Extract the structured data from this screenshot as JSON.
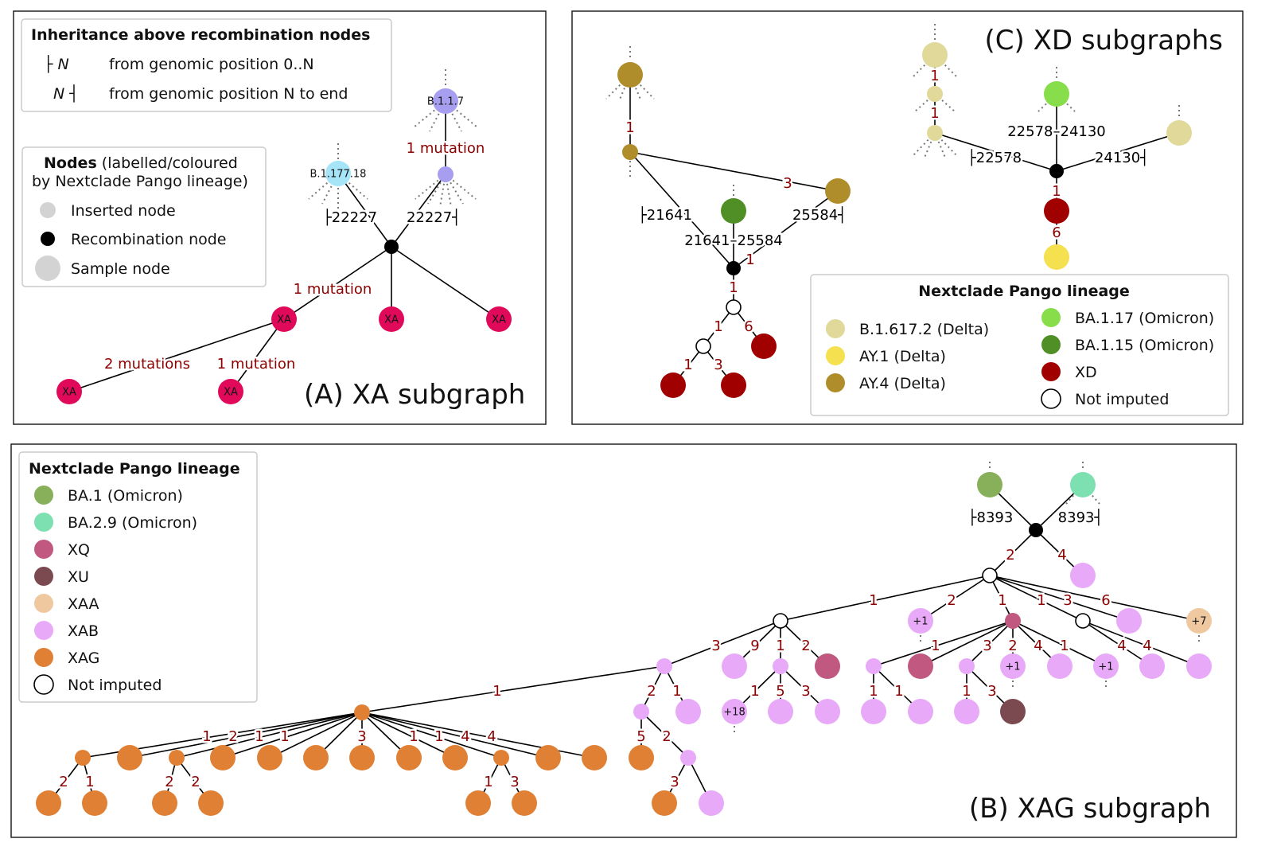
{
  "panel_a": {
    "title": "(A) XA subgraph",
    "inheritance_legend": {
      "title": "Inheritance above recombination nodes",
      "rows": [
        {
          "symbol": "├ N",
          "text": "from genomic position 0..N"
        },
        {
          "symbol": "N ┤",
          "text": "from genomic position N to end"
        }
      ]
    },
    "nodes_legend": {
      "title_bold": "Nodes",
      "title_rest": " (labelled/coloured",
      "title_line2": "by Nextclade Pango lineage)",
      "items": [
        {
          "label": "Inserted node",
          "kind": "inserted",
          "color": "#d3d3d3"
        },
        {
          "label": "Recombination node",
          "kind": "recombination",
          "color": "#000000"
        },
        {
          "label": "Sample node",
          "kind": "sample",
          "color": "#d3d3d3"
        }
      ]
    },
    "lineages": [
      {
        "key": "B.1.1.7",
        "color": "#a89ef0"
      },
      {
        "key": "B.1.177.18",
        "color": "#a6e4f8"
      },
      {
        "key": "XA",
        "color": "#e0095a"
      }
    ],
    "nodes": [
      {
        "id": "b117",
        "lineage": "B.1.1.7",
        "type": "sample",
        "label": "B.1.1.7"
      },
      {
        "id": "a1",
        "lineage": "B.1.1.7",
        "type": "inserted"
      },
      {
        "id": "b177",
        "lineage": "B.1.177.18",
        "type": "sample",
        "label": "B.1.177.18"
      },
      {
        "id": "ra",
        "type": "recombination"
      },
      {
        "id": "xa1",
        "lineage": "XA",
        "type": "sample",
        "label": "XA"
      },
      {
        "id": "xa2",
        "lineage": "XA",
        "type": "sample",
        "label": "XA"
      },
      {
        "id": "xa3",
        "lineage": "XA",
        "type": "sample",
        "label": "XA"
      },
      {
        "id": "xa4",
        "lineage": "XA",
        "type": "sample",
        "label": "XA"
      },
      {
        "id": "xa5",
        "lineage": "XA",
        "type": "sample",
        "label": "XA"
      }
    ],
    "edges": [
      {
        "from": "b117",
        "to": "a1",
        "label": "1 mutation"
      },
      {
        "from": "b177",
        "to": "ra",
        "label": "├22227"
      },
      {
        "from": "a1",
        "to": "ra",
        "label": "22227┤"
      },
      {
        "from": "ra",
        "to": "xa1",
        "label": "1 mutation"
      },
      {
        "from": "ra",
        "to": "xa2",
        "label": ""
      },
      {
        "from": "ra",
        "to": "xa3",
        "label": ""
      },
      {
        "from": "xa1",
        "to": "xa4",
        "label": "2 mutations"
      },
      {
        "from": "xa1",
        "to": "xa5",
        "label": "1 mutation"
      }
    ]
  },
  "panel_c": {
    "title": "(C) XD subgraphs",
    "legend_title": "Nextclade Pango lineage",
    "lineages": [
      {
        "key": "B.1.617.2",
        "label": "B.1.617.2 (Delta)",
        "color": "#e0d99a"
      },
      {
        "key": "AY.1",
        "label": "AY.1 (Delta)",
        "color": "#f5e050"
      },
      {
        "key": "AY.4",
        "label": "AY.4 (Delta)",
        "color": "#b08d2b"
      },
      {
        "key": "BA.1.17",
        "label": "BA.1.17 (Omicron)",
        "color": "#88dd4a"
      },
      {
        "key": "BA.1.15",
        "label": "BA.1.15 (Omicron)",
        "color": "#4f8f25"
      },
      {
        "key": "XD",
        "label": "XD",
        "color": "#a00000"
      },
      {
        "key": "NI",
        "label": "Not imputed",
        "color": "#ffffff"
      }
    ],
    "nodes": [
      {
        "id": "ay4a",
        "lineage": "AY.4",
        "type": "sample"
      },
      {
        "id": "ay4b",
        "lineage": "AY.4",
        "type": "inserted"
      },
      {
        "id": "ay4c",
        "lineage": "AY.4",
        "type": "sample"
      },
      {
        "id": "ba115",
        "lineage": "BA.1.15",
        "type": "sample"
      },
      {
        "id": "rc",
        "type": "recombination"
      },
      {
        "id": "ni1",
        "lineage": "NI",
        "type": "not_imputed"
      },
      {
        "id": "ni2",
        "lineage": "NI",
        "type": "not_imputed"
      },
      {
        "id": "xd1",
        "lineage": "XD",
        "type": "sample"
      },
      {
        "id": "xd2",
        "lineage": "XD",
        "type": "sample"
      },
      {
        "id": "xd3",
        "lineage": "XD",
        "type": "sample"
      },
      {
        "id": "d1",
        "lineage": "B.1.617.2",
        "type": "sample"
      },
      {
        "id": "d2",
        "lineage": "B.1.617.2",
        "type": "inserted"
      },
      {
        "id": "d3",
        "lineage": "B.1.617.2",
        "type": "inserted"
      },
      {
        "id": "ba117",
        "lineage": "BA.1.17",
        "type": "sample"
      },
      {
        "id": "d4",
        "lineage": "B.1.617.2",
        "type": "sample"
      },
      {
        "id": "rc2",
        "type": "recombination"
      },
      {
        "id": "xd4",
        "lineage": "XD",
        "type": "sample"
      },
      {
        "id": "ay1",
        "lineage": "AY.1",
        "type": "sample"
      }
    ],
    "edges": [
      {
        "from": "ay4a",
        "to": "ay4b",
        "label": "1"
      },
      {
        "from": "ay4b",
        "to": "rc",
        "label": "├21641"
      },
      {
        "from": "ay4b",
        "to": "ay4c",
        "label": "3"
      },
      {
        "from": "ba115",
        "to": "rc",
        "label": "21641–25584"
      },
      {
        "from": "ay4c",
        "to": "rc",
        "label": "25584┤",
        "extra_label": "1"
      },
      {
        "from": "rc",
        "to": "ni1",
        "label": "1"
      },
      {
        "from": "ni1",
        "to": "ni2",
        "label": "1"
      },
      {
        "from": "ni1",
        "to": "xd1",
        "label": "6"
      },
      {
        "from": "ni2",
        "to": "xd2",
        "label": "1"
      },
      {
        "from": "ni2",
        "to": "xd3",
        "label": "3"
      },
      {
        "from": "d1",
        "to": "d2",
        "label": "1"
      },
      {
        "from": "d2",
        "to": "d3",
        "label": "1"
      },
      {
        "from": "d3",
        "to": "rc2",
        "label": "├22578"
      },
      {
        "from": "ba117",
        "to": "rc2",
        "label": "22578–24130"
      },
      {
        "from": "d4",
        "to": "rc2",
        "label": "24130┤"
      },
      {
        "from": "rc2",
        "to": "xd4",
        "label": "1"
      },
      {
        "from": "xd4",
        "to": "ay1",
        "label": "6"
      }
    ]
  },
  "panel_b": {
    "title": "(B) XAG subgraph",
    "legend_title": "Nextclade Pango lineage",
    "lineages": [
      {
        "key": "BA.1",
        "label": "BA.1 (Omicron)",
        "color": "#88b05a"
      },
      {
        "key": "BA.2.9",
        "label": "BA.2.9 (Omicron)",
        "color": "#7de0b0"
      },
      {
        "key": "XQ",
        "label": "XQ",
        "color": "#c05880"
      },
      {
        "key": "XU",
        "label": "XU",
        "color": "#7a4a50"
      },
      {
        "key": "XAA",
        "label": "XAA",
        "color": "#f0c8a0"
      },
      {
        "key": "XAB",
        "label": "XAB",
        "color": "#e8aaf8"
      },
      {
        "key": "XAG",
        "label": "XAG",
        "color": "#e08035"
      },
      {
        "key": "NI",
        "label": "Not imputed",
        "color": "#ffffff"
      }
    ],
    "nodes": [
      {
        "id": "ba1",
        "lineage": "BA.1",
        "type": "sample"
      },
      {
        "id": "ba29",
        "lineage": "BA.2.9",
        "type": "sample"
      },
      {
        "id": "rb",
        "type": "recombination"
      },
      {
        "id": "n1",
        "lineage": "XAB",
        "type": "sample"
      },
      {
        "id": "ni0",
        "lineage": "NI",
        "type": "not_imputed"
      },
      {
        "id": "ni3",
        "lineage": "NI",
        "type": "not_imputed"
      },
      {
        "id": "p1",
        "lineage": "XAB",
        "type": "sample",
        "label": "+1"
      },
      {
        "id": "xq1",
        "lineage": "XQ",
        "type": "inserted"
      },
      {
        "id": "ni4",
        "lineage": "NI",
        "type": "not_imputed"
      },
      {
        "id": "p2",
        "lineage": "XAB",
        "type": "sample"
      },
      {
        "id": "xaa",
        "lineage": "XAA",
        "type": "sample",
        "label": "+7"
      },
      {
        "id": "s1",
        "lineage": "XAB",
        "type": "inserted"
      },
      {
        "id": "p3",
        "lineage": "XAB",
        "type": "sample"
      },
      {
        "id": "s2",
        "lineage": "XAB",
        "type": "inserted"
      },
      {
        "id": "xq2",
        "lineage": "XQ",
        "type": "sample"
      },
      {
        "id": "s3",
        "lineage": "XAB",
        "type": "inserted"
      },
      {
        "id": "xq3",
        "lineage": "XQ",
        "type": "sample"
      },
      {
        "id": "s4",
        "lineage": "XAB",
        "type": "inserted"
      },
      {
        "id": "p4",
        "lineage": "XAB",
        "type": "sample",
        "label": "+1"
      },
      {
        "id": "p5",
        "lineage": "XAB",
        "type": "sample"
      },
      {
        "id": "p6",
        "lineage": "XAB",
        "type": "sample",
        "label": "+1"
      },
      {
        "id": "p7",
        "lineage": "XAB",
        "type": "sample"
      },
      {
        "id": "p8",
        "lineage": "XAB",
        "type": "sample"
      },
      {
        "id": "s5",
        "lineage": "XAB",
        "type": "inserted"
      },
      {
        "id": "p9",
        "lineage": "XAB",
        "type": "sample"
      },
      {
        "id": "p10",
        "lineage": "XAB",
        "type": "sample",
        "label": "+18"
      },
      {
        "id": "p11",
        "lineage": "XAB",
        "type": "sample"
      },
      {
        "id": "p12",
        "lineage": "XAB",
        "type": "sample"
      },
      {
        "id": "p13",
        "lineage": "XAB",
        "type": "sample"
      },
      {
        "id": "p14",
        "lineage": "XAB",
        "type": "sample"
      },
      {
        "id": "p15",
        "lineage": "XAB",
        "type": "sample"
      },
      {
        "id": "xu",
        "lineage": "XU",
        "type": "sample"
      },
      {
        "id": "o1",
        "lineage": "XAG",
        "type": "sample"
      },
      {
        "id": "s6",
        "lineage": "XAB",
        "type": "inserted"
      },
      {
        "id": "o2",
        "lineage": "XAG",
        "type": "sample"
      },
      {
        "id": "p16",
        "lineage": "XAB",
        "type": "sample"
      },
      {
        "id": "xh",
        "lineage": "XAG",
        "type": "inserted"
      },
      {
        "id": "h1",
        "lineage": "XAG",
        "type": "inserted"
      },
      {
        "id": "h2",
        "lineage": "XAG",
        "type": "sample"
      },
      {
        "id": "h3",
        "lineage": "XAG",
        "type": "inserted"
      },
      {
        "id": "h4",
        "lineage": "XAG",
        "type": "sample"
      },
      {
        "id": "h5",
        "lineage": "XAG",
        "type": "sample"
      },
      {
        "id": "h6",
        "lineage": "XAG",
        "type": "sample"
      },
      {
        "id": "h7",
        "lineage": "XAG",
        "type": "sample"
      },
      {
        "id": "h8",
        "lineage": "XAG",
        "type": "sample"
      },
      {
        "id": "h9",
        "lineage": "XAG",
        "type": "sample"
      },
      {
        "id": "h10",
        "lineage": "XAG",
        "type": "inserted"
      },
      {
        "id": "h11",
        "lineage": "XAG",
        "type": "sample"
      },
      {
        "id": "h12",
        "lineage": "XAG",
        "type": "sample"
      },
      {
        "id": "g1",
        "lineage": "XAG",
        "type": "sample"
      },
      {
        "id": "g2",
        "lineage": "XAG",
        "type": "sample"
      },
      {
        "id": "g3",
        "lineage": "XAG",
        "type": "sample"
      },
      {
        "id": "g4",
        "lineage": "XAG",
        "type": "sample"
      },
      {
        "id": "g5",
        "lineage": "XAG",
        "type": "sample"
      },
      {
        "id": "g6",
        "lineage": "XAG",
        "type": "sample"
      }
    ],
    "edges": [
      {
        "from": "ba1",
        "to": "rb",
        "label": "├8393"
      },
      {
        "from": "ba29",
        "to": "rb",
        "label": "8393┤"
      },
      {
        "from": "rb",
        "to": "ni0",
        "label": "2"
      },
      {
        "from": "rb",
        "to": "n1",
        "label": "4"
      },
      {
        "from": "ni0",
        "to": "ni3",
        "label": "1"
      },
      {
        "from": "ni0",
        "to": "p1",
        "label": "2"
      },
      {
        "from": "ni0",
        "to": "xq1",
        "label": "1"
      },
      {
        "from": "ni0",
        "to": "ni4",
        "label": "1"
      },
      {
        "from": "ni0",
        "to": "p2",
        "label": "3"
      },
      {
        "from": "ni0",
        "to": "xaa",
        "label": "6"
      },
      {
        "from": "ni3",
        "to": "s1",
        "label": "3"
      },
      {
        "from": "ni3",
        "to": "p3",
        "label": "9"
      },
      {
        "from": "ni3",
        "to": "s2",
        "label": "1"
      },
      {
        "from": "ni3",
        "to": "xq2",
        "label": "2"
      },
      {
        "from": "xq1",
        "to": "s3",
        "label": "1"
      },
      {
        "from": "xq1",
        "to": "xq3",
        "label": ""
      },
      {
        "from": "xq1",
        "to": "s4",
        "label": "3"
      },
      {
        "from": "xq1",
        "to": "p4",
        "label": "2"
      },
      {
        "from": "xq1",
        "to": "p5",
        "label": "4"
      },
      {
        "from": "xq1",
        "to": "p6",
        "label": "1"
      },
      {
        "from": "ni4",
        "to": "p7",
        "label": "4"
      },
      {
        "from": "ni4",
        "to": "p8",
        "label": "4"
      },
      {
        "from": "s1",
        "to": "s5",
        "label": "2"
      },
      {
        "from": "s1",
        "to": "p9",
        "label": "1"
      },
      {
        "from": "s2",
        "to": "p10",
        "label": "1"
      },
      {
        "from": "s2",
        "to": "p11",
        "label": "5"
      },
      {
        "from": "s2",
        "to": "p12",
        "label": "3"
      },
      {
        "from": "s3",
        "to": "p13",
        "label": "1"
      },
      {
        "from": "s3",
        "to": "p14",
        "label": "1"
      },
      {
        "from": "s4",
        "to": "p15",
        "label": "1"
      },
      {
        "from": "s4",
        "to": "xu",
        "label": "3"
      },
      {
        "from": "s5",
        "to": "o1",
        "label": "5"
      },
      {
        "from": "s5",
        "to": "s6",
        "label": "2"
      },
      {
        "from": "s6",
        "to": "o2",
        "label": "3"
      },
      {
        "from": "s6",
        "to": "p16",
        "label": ""
      },
      {
        "from": "s1",
        "to": "xh",
        "label": "1"
      },
      {
        "from": "xh",
        "to": "h1",
        "label": "1"
      },
      {
        "from": "xh",
        "to": "h2",
        "label": "2"
      },
      {
        "from": "xh",
        "to": "h3",
        "label": "1"
      },
      {
        "from": "xh",
        "to": "h4",
        "label": "1"
      },
      {
        "from": "xh",
        "to": "h5",
        "label": ""
      },
      {
        "from": "xh",
        "to": "h6",
        "label": ""
      },
      {
        "from": "xh",
        "to": "h7",
        "label": "3"
      },
      {
        "from": "xh",
        "to": "h8",
        "label": "1"
      },
      {
        "from": "xh",
        "to": "h9",
        "label": "1"
      },
      {
        "from": "xh",
        "to": "h10",
        "label": "4"
      },
      {
        "from": "xh",
        "to": "h11",
        "label": "4"
      },
      {
        "from": "xh",
        "to": "h12",
        "label": ""
      },
      {
        "from": "h1",
        "to": "g1",
        "label": "2"
      },
      {
        "from": "h1",
        "to": "g2",
        "label": "1"
      },
      {
        "from": "h3",
        "to": "g3",
        "label": "2"
      },
      {
        "from": "h3",
        "to": "g4",
        "label": "2"
      },
      {
        "from": "h10",
        "to": "g5",
        "label": "1"
      },
      {
        "from": "h10",
        "to": "g6",
        "label": "3"
      }
    ]
  }
}
